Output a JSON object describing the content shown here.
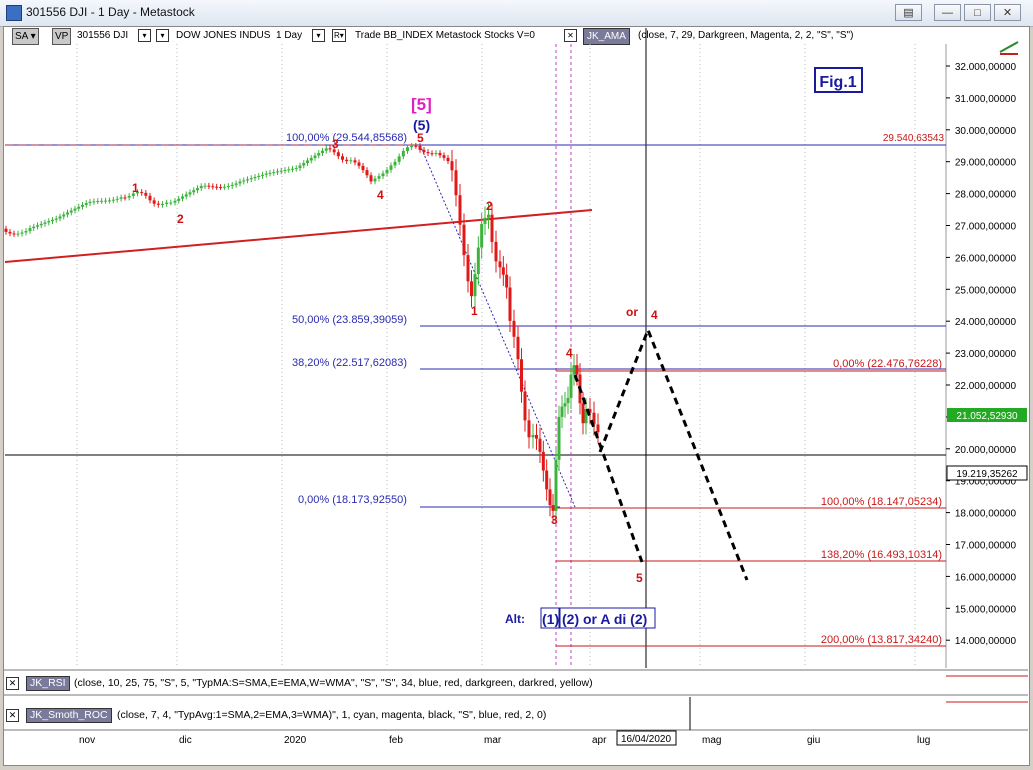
{
  "window": {
    "title": "301556 DJI - 1 Day - Metastock"
  },
  "window_buttons": [
    "restore",
    "minimize",
    "maximize",
    "close"
  ],
  "toolbar": {
    "sa": "SA",
    "vp": "VP",
    "symbol": "301556 DJI",
    "name": "DOW JONES INDUS",
    "period": "1 Day",
    "r": "R",
    "trade_info": "Trade  BB_INDEX  Metastock  Stocks  V=0",
    "indicator_name": "JK_AMA",
    "indicator_params": "(close,  7,  29,  Darkgreen,  Magenta,  2,  2,  \"S\",  \"S\")"
  },
  "fig_label": "Fig.1",
  "price_axis": {
    "ticks": [
      "32.000,00000",
      "31.000,00000",
      "30.000,00000",
      "29.000,00000",
      "28.000,00000",
      "27.000,00000",
      "26.000,00000",
      "25.000,00000",
      "24.000,00000",
      "23.000,00000",
      "22.000,00000",
      "21.000,00000",
      "20.000,00000",
      "19.000,00000",
      "18.000,00000",
      "17.000,00000",
      "16.000,00000",
      "15.000,00000",
      "14.000,00000"
    ],
    "last_price": "21.052,52930",
    "cursor_price": "19.219,35262",
    "top_level": "29.540,63543"
  },
  "fib_left": [
    "100,00% (29.544,85568)",
    "50,00% (23.859,39059)",
    "38,20% (22.517,62083)",
    "0,00% (18.173,92550)"
  ],
  "fib_right": [
    "0,00% (22.476,76228)",
    "100,00% (18.147,05234)",
    "138,20% (16.493,10314)",
    "200,00% (13.817,34240)"
  ],
  "wave_labels": {
    "big5": "[5]",
    "paren5": "(5)",
    "w1a": "1",
    "w2a": "2",
    "w3a": "3",
    "w4a": "4",
    "w5a": "5",
    "w1b": "1",
    "w2b": "2",
    "w3b": "3",
    "w4b": "4",
    "w5b": "5",
    "or": "or",
    "w4c": "4"
  },
  "alt": {
    "label": "Alt:",
    "box1": "(1)",
    "box2": "(2) or A di (2)"
  },
  "indicators": [
    {
      "name": "JK_RSI",
      "params": "(close,  10,  25,  75,  \"S\",  5,  \"TypMA:S=SMA,E=EMA,W=WMA\",  \"S\",  \"S\",  34,  blue,  red,  darkgreen,  darkred,  yellow)"
    },
    {
      "name": "JK_Smoth_ROC",
      "params": "(close,  7,  4,  \"TypAvg:1=SMA,2=EMA,3=WMA)\",  1,  cyan,  magenta,  black,  \"S\",  blue,  red,  2,  0)"
    }
  ],
  "time_axis": {
    "labels": [
      "nov",
      "dic",
      "2020",
      "feb",
      "mar",
      "apr",
      "mag",
      "giu",
      "lug"
    ],
    "cursor_date": "16/04/2020"
  },
  "colors": {
    "bull": "#3cb43c",
    "bear": "#e01818",
    "fib_blue": "#2a2ab0",
    "fib_red": "#c81818",
    "wave_red": "#d01010",
    "magenta": "#e020c0",
    "trendline": "#d02020"
  },
  "chart_data": {
    "type": "candlestick",
    "title": "301556 DJI - 1 Day",
    "y_unit": "index points",
    "ylim": [
      13000,
      32500
    ],
    "visible_range": [
      "2019-10",
      "2020-07"
    ],
    "key_levels": {
      "high_feb_2020": 29544.86,
      "low_mar_2020": 18173.93,
      "retracement_50": 23859.39,
      "retracement_38_2": 22517.62,
      "projection_0": 22476.76,
      "projection_100": 18147.05,
      "projection_138_2": 16493.1,
      "projection_200": 13817.34,
      "last_price": 21052.53,
      "cursor_price": 19219.35
    }
  }
}
